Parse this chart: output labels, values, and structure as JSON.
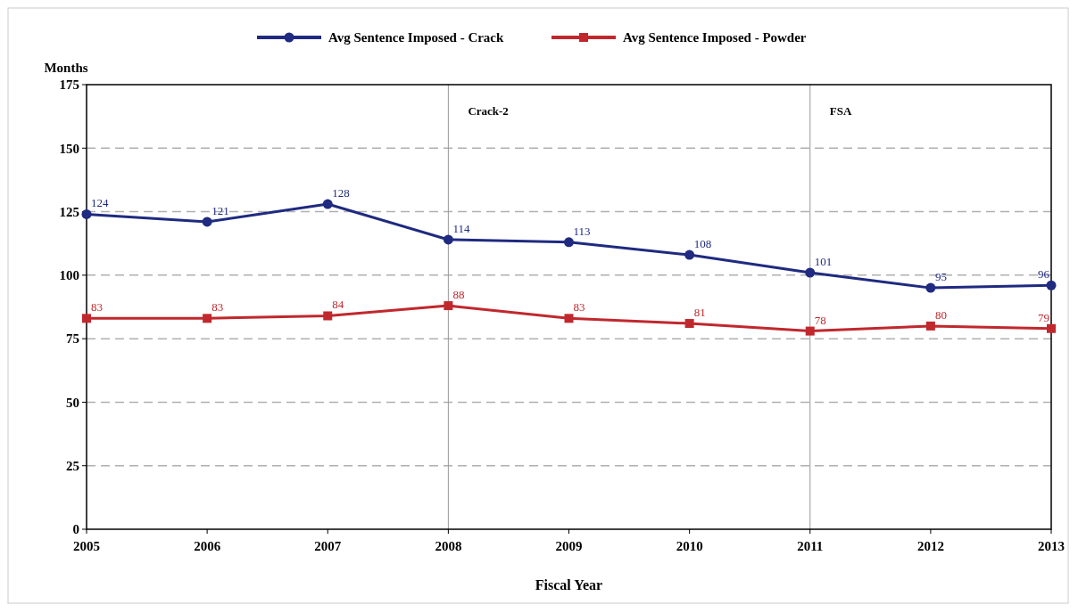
{
  "chart_data": {
    "type": "line",
    "xlabel": "Fiscal Year",
    "ylabel": "Months",
    "x": [
      2005,
      2006,
      2007,
      2008,
      2009,
      2010,
      2011,
      2012,
      2013
    ],
    "series": [
      {
        "name": "Avg Sentence Imposed - Crack",
        "color": "#1f2a80",
        "marker": "circle",
        "values": [
          124,
          121,
          128,
          114,
          113,
          108,
          101,
          95,
          96
        ]
      },
      {
        "name": "Avg Sentence Imposed - Powder",
        "color": "#c0282d",
        "marker": "square",
        "values": [
          83,
          83,
          84,
          88,
          83,
          81,
          78,
          80,
          79
        ]
      }
    ],
    "xlim": [
      2005,
      2013
    ],
    "xticks": [
      2005,
      2006,
      2007,
      2008,
      2009,
      2010,
      2011,
      2012,
      2013
    ],
    "ylim": [
      0,
      175
    ],
    "yticks": [
      0,
      25,
      50,
      75,
      100,
      125,
      150,
      175
    ],
    "grid": "y",
    "legend": "top",
    "data_labels": true,
    "line_style": "solid",
    "ref_lines": [
      {
        "axis": "x",
        "value": 2008,
        "label": "Crack-2",
        "color": "#999999"
      },
      {
        "axis": "x",
        "value": 2011,
        "label": "FSA",
        "color": "#999999"
      }
    ]
  }
}
